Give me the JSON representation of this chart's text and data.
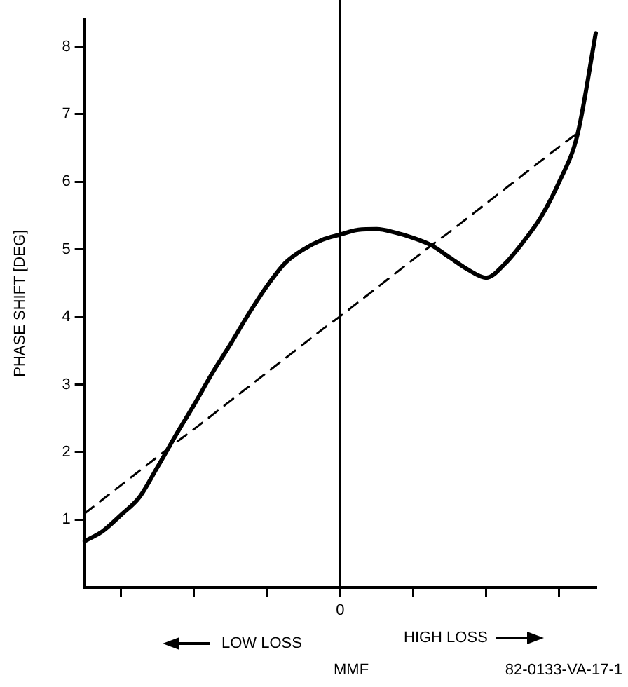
{
  "chart_data": {
    "type": "line",
    "xlabel": "MMF",
    "ylabel": "PHASE SHIFT [DEG]",
    "categories": [
      null,
      null,
      null,
      null,
      null,
      null,
      null,
      null,
      null,
      null,
      null,
      null,
      null,
      null,
      "0",
      null,
      null,
      null,
      null,
      null,
      null,
      null,
      null,
      null,
      null,
      null,
      null,
      null,
      null
    ],
    "ylim": [
      0,
      8.4
    ],
    "yticks": [
      1,
      2,
      3,
      4,
      5,
      6,
      7,
      8
    ],
    "grid": false,
    "legend": false,
    "marker": "none",
    "series": [
      {
        "color": "#000000",
        "line_style": "solid",
        "values": [
          0.68,
          0.83,
          1.07,
          1.33,
          1.78,
          2.25,
          2.7,
          3.17,
          3.6,
          4.05,
          4.46,
          4.8,
          5.0,
          5.14,
          5.22,
          5.29,
          5.3,
          5.25,
          5.17,
          5.06,
          4.88,
          4.7,
          4.58,
          4.78,
          5.1,
          5.48,
          6.0,
          6.7,
          8.2
        ]
      },
      {
        "color": "#000000",
        "line_style": "dashed",
        "values": [
          1.09,
          1.3,
          1.51,
          1.72,
          1.93,
          2.14,
          2.34,
          2.55,
          2.76,
          2.97,
          3.18,
          3.39,
          3.6,
          3.81,
          4.01,
          4.22,
          4.43,
          4.64,
          4.85,
          5.06,
          5.26,
          5.47,
          5.68,
          5.89,
          6.1,
          6.31,
          6.52,
          6.72,
          null
        ]
      }
    ],
    "ref_lines": [
      {
        "axis": "x",
        "value": "0",
        "color": "#000000",
        "line_style": "solid"
      }
    ],
    "annotations": [
      "LOW LOSS",
      "HIGH LOSS",
      "82-0133-VA-17-1"
    ]
  }
}
